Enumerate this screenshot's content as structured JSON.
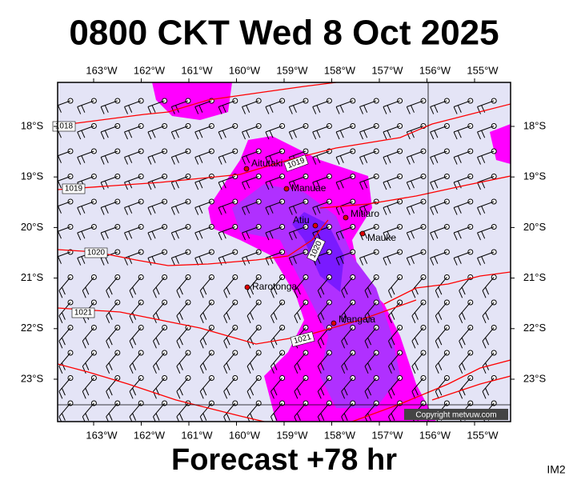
{
  "header": {
    "title": "0800 CKT Wed 8 Oct 2025"
  },
  "axes": {
    "lon_labels": [
      "163°W",
      "162°W",
      "161°W",
      "160°W",
      "159°W",
      "158°W",
      "157°W",
      "156°W",
      "155°W"
    ],
    "lat_labels": [
      "18°S",
      "19°S",
      "20°S",
      "21°S",
      "22°S",
      "23°S"
    ]
  },
  "places": [
    "Aitutaki",
    "Manuae",
    "Atiu",
    "Mitiaro",
    "Mauke",
    "Rarotonga",
    "Mangaia"
  ],
  "isobar_labels": [
    "1018",
    "1019",
    "1019",
    "1020",
    "1020",
    "1021",
    "1021"
  ],
  "copyright": "Copyright metvuw.com",
  "footer": {
    "forecast": "Forecast +78 hr",
    "code": "IM2"
  }
}
